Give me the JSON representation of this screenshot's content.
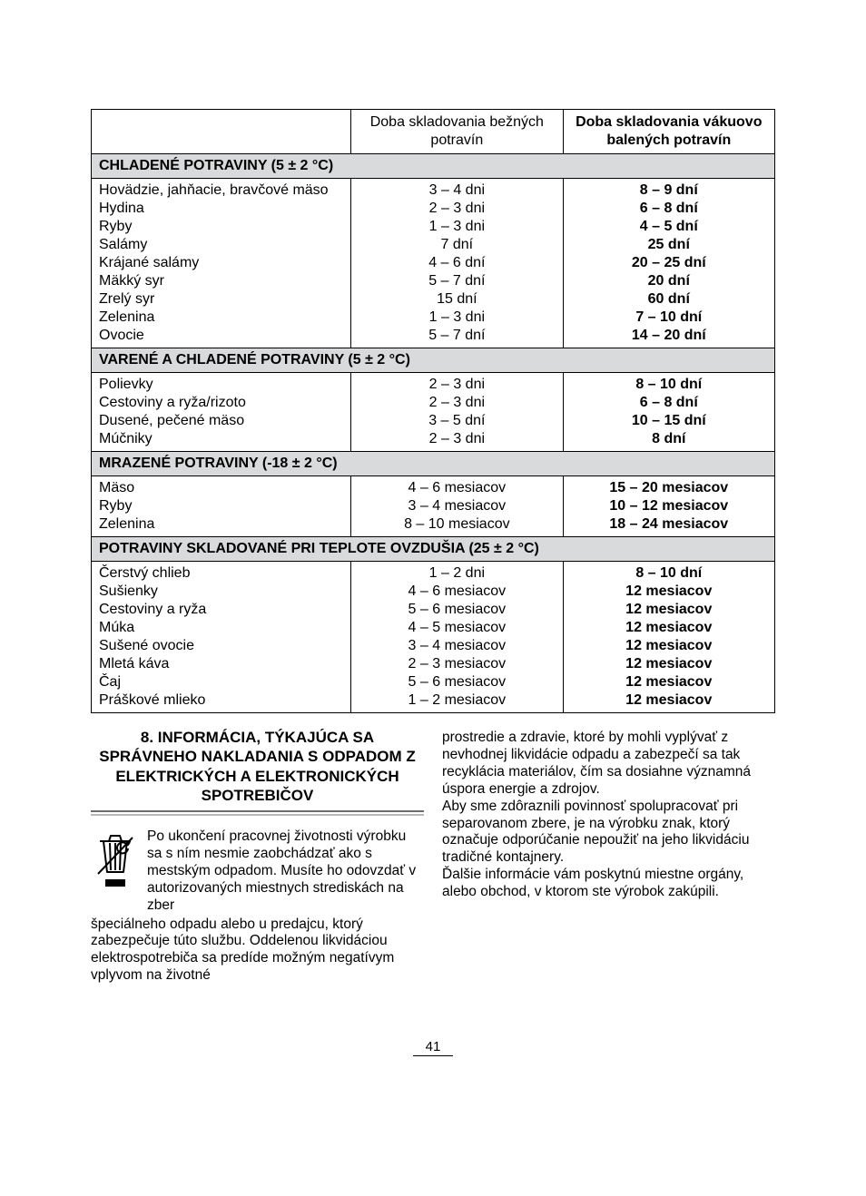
{
  "table": {
    "headers": {
      "blank": "",
      "normal": "Doba skladovania bežných potravín",
      "vacuum": "Doba skladovania vákuovo balených potravín"
    },
    "section1": {
      "title": "CHLADENÉ POTRAVINY   (5 ± 2 °C)",
      "rows": [
        {
          "item": "Hovädzie, jahňacie, bravčové mäso",
          "normal": "3 – 4 dni",
          "vac": "8 – 9 dní"
        },
        {
          "item": "Hydina",
          "normal": "2 – 3 dni",
          "vac": "6 – 8 dní"
        },
        {
          "item": "Ryby",
          "normal": "1 – 3 dni",
          "vac": "4 – 5 dní"
        },
        {
          "item": "Salámy",
          "normal": "7 dní",
          "vac": "25 dní"
        },
        {
          "item": "Krájané salámy",
          "normal": "4 – 6 dní",
          "vac": "20 – 25 dní"
        },
        {
          "item": "Mäkký syr",
          "normal": "5 – 7 dní",
          "vac": "20 dní"
        },
        {
          "item": "Zrelý syr",
          "normal": "15 dní",
          "vac": "60 dní"
        },
        {
          "item": "Zelenina",
          "normal": "1 – 3 dni",
          "vac": "7 – 10 dní"
        },
        {
          "item": "Ovocie",
          "normal": "5 – 7 dní",
          "vac": "14 – 20 dní"
        }
      ]
    },
    "section2": {
      "title": "VARENÉ A CHLADENÉ POTRAVINY (5 ± 2 °C)",
      "rows": [
        {
          "item": "Polievky",
          "normal": "2 – 3 dni",
          "vac": "8 – 10 dní"
        },
        {
          "item": "Cestoviny a ryža/rizoto",
          "normal": "2 – 3 dni",
          "vac": "6 – 8 dní"
        },
        {
          "item": "Dusené, pečené mäso",
          "normal": "3 – 5 dní",
          "vac": "10 – 15 dní"
        },
        {
          "item": "Múčniky",
          "normal": "2 – 3 dni",
          "vac": "8 dní"
        }
      ]
    },
    "section3": {
      "title": "MRAZENÉ POTRAVINY  (-18 ± 2 °C)",
      "rows": [
        {
          "item": "Mäso",
          "normal": "4 – 6 mesiacov",
          "vac": "15 – 20 mesiacov"
        },
        {
          "item": "Ryby",
          "normal": "3 – 4 mesiacov",
          "vac": "10 – 12 mesiacov"
        },
        {
          "item": "Zelenina",
          "normal": "8 – 10 mesiacov",
          "vac": "18 – 24 mesiacov"
        }
      ]
    },
    "section4": {
      "title": "POTRAVINY SKLADOVANÉ PRI TEPLOTE OVZDUŠIA (25 ± 2 °C)",
      "rows": [
        {
          "item": "Čerstvý chlieb",
          "normal": "1 – 2 dni",
          "vac": "8 – 10 dní"
        },
        {
          "item": "Sušienky",
          "normal": "4 – 6 mesiacov",
          "vac": "12 mesiacov"
        },
        {
          "item": "Cestoviny a ryža",
          "normal": "5 – 6 mesiacov",
          "vac": "12 mesiacov"
        },
        {
          "item": "Múka",
          "normal": "4 – 5 mesiacov",
          "vac": "12 mesiacov"
        },
        {
          "item": "Sušené ovocie",
          "normal": "3 – 4 mesiacov",
          "vac": "12 mesiacov"
        },
        {
          "item": "Mletá káva",
          "normal": "2 – 3 mesiacov",
          "vac": "12 mesiacov"
        },
        {
          "item": "Čaj",
          "normal": "5 – 6 mesiacov",
          "vac": "12 mesiacov"
        },
        {
          "item": "Práškové mlieko",
          "normal": "1 – 2 mesiacov",
          "vac": "12 mesiacov"
        }
      ]
    }
  },
  "section8": {
    "title": "8. INFORMÁCIA, TÝKAJÚCA SA SPRÁVNEHO NAKLADANIA S ODPADOM Z ELEKTRICKÝCH A ELEKTRONICKÝCH SPOTREBIČOV",
    "left_icon_text": "Po ukončení pracovnej životnosti výrobku sa s ním nesmie zaobchádzať ako s mestským odpadom. Musíte ho odovzdať v autorizovaných miestnych strediskách na zber",
    "left_below": "špeciálneho odpadu alebo u predajcu, ktorý zabezpečuje túto službu. Oddelenou likvidáciou elektrospotrebiča sa predíde možným negatívym vplyvom na životné",
    "right_p1": "prostredie a zdravie, ktoré by mohli vyplývať z nevhodnej likvidácie odpadu a zabezpečí sa tak recyklácia materiálov, čím sa dosiahne významná úspora energie a zdrojov.",
    "right_p2": "Aby sme zdôraznili povinnosť spolupracovať pri separovanom zbere, je na výrobku znak, ktorý označuje odporúčanie nepoužiť na jeho likvidáciu tradičné kontajnery.",
    "right_p3": "Ďalšie informácie vám poskytnú miestne orgány, alebo obchod, v ktorom ste výrobok zakúpili."
  },
  "pageNumber": "41",
  "colors": {
    "section_bg": "#d9dadb",
    "border": "#000000",
    "underline1": "#6b6b6b",
    "underline2": "#b8b8b8"
  }
}
